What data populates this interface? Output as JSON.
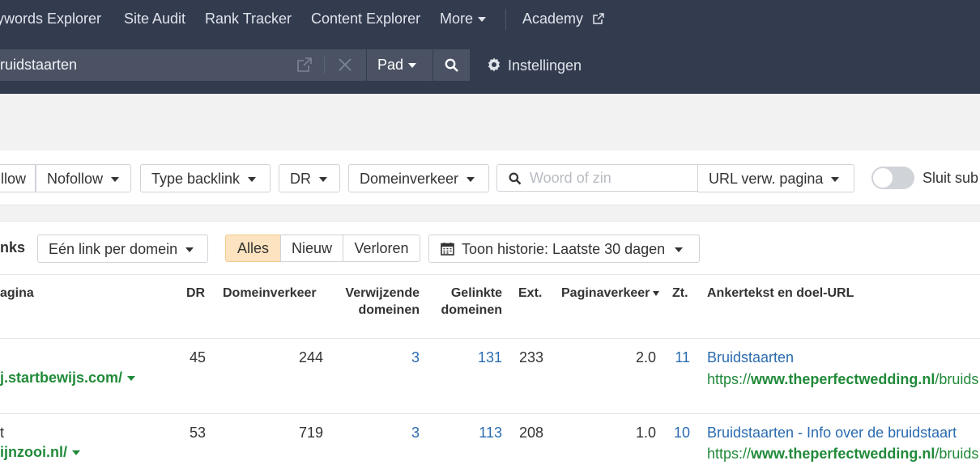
{
  "nav": {
    "items": [
      "ywords Explorer",
      "Site Audit",
      "Rank Tracker",
      "Content Explorer",
      "More"
    ],
    "academy": "Academy"
  },
  "search": {
    "value": "ruidstaarten",
    "mode": "Pad",
    "settings": "Instellingen"
  },
  "filters": {
    "dofollow": "llow",
    "nofollow": "Nofollow",
    "type_backlink": "Type backlink",
    "dr": "DR",
    "domeinverkeer": "Domeinverkeer",
    "search_placeholder": "Woord of zin",
    "url_ref": "URL verw. pagina",
    "toggle_label": "Sluit sub"
  },
  "toolbar": {
    "label": "nks",
    "link_per_domain": "Eén link per domein",
    "segments": [
      "Alles",
      "Nieuw",
      "Verloren"
    ],
    "history": "Toon historie: Laatste 30 dagen"
  },
  "table": {
    "headers": {
      "page": "agina",
      "dr": "DR",
      "domeinverkeer": "Domeinverkeer",
      "verwijzende_1": "Verwijzende",
      "verwijzende_2": "domeinen",
      "gelinkte_1": "Gelinkte",
      "gelinkte_2": "domeinen",
      "ext": "Ext.",
      "paginaverkeer": "Paginaverkeer",
      "zt": "Zt.",
      "anchor": "Ankertekst en doel-URL"
    },
    "rows": [
      {
        "page_line1": "",
        "domain": "j.startbewijs.com/",
        "dr": "45",
        "domeinverkeer": "244",
        "verwijzende": "3",
        "gelinkte": "131",
        "ext": "233",
        "paginaverkeer": "2.0",
        "zt": "11",
        "anchor": "Bruidstaarten",
        "url_prefix": "https://",
        "url_domain": "www.theperfectwedding.nl",
        "url_path": "/bruids"
      },
      {
        "page_line1": "t",
        "domain": "ijnzooi.nl/",
        "dr": "53",
        "domeinverkeer": "719",
        "verwijzende": "3",
        "gelinkte": "113",
        "ext": "208",
        "paginaverkeer": "1.0",
        "zt": "10",
        "anchor": "Bruidstaarten - Info over de bruidstaart",
        "url_prefix": "https://",
        "url_domain": "www.theperfectwedding.nl",
        "url_path": "/bruids"
      }
    ]
  },
  "colors": {
    "header_bg": "#333b4f",
    "link_blue": "#2a6bb0",
    "url_green": "#218a3a",
    "active_segment": "#fde3bf"
  }
}
